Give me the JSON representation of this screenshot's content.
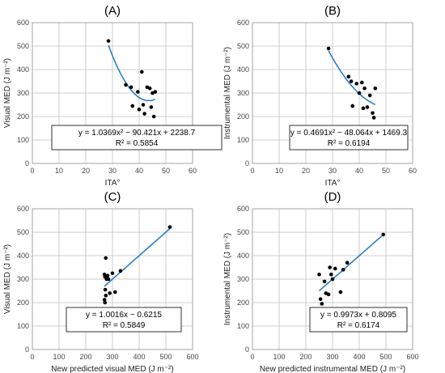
{
  "chart_data": [
    {
      "type": "scatter",
      "panel": "(A)",
      "xlabel": "ITA°",
      "ylabel": "Visual MED (J m⁻²)",
      "xlim": [
        0,
        60
      ],
      "ylim": [
        0,
        600
      ],
      "xticks": [
        0,
        10,
        20,
        30,
        40,
        50,
        60
      ],
      "yticks": [
        0,
        100,
        200,
        300,
        400,
        500,
        600
      ],
      "grid": true,
      "points": [
        {
          "x": 28.5,
          "y": 522
        },
        {
          "x": 35,
          "y": 335
        },
        {
          "x": 37,
          "y": 325
        },
        {
          "x": 37.5,
          "y": 245
        },
        {
          "x": 39.5,
          "y": 305
        },
        {
          "x": 40,
          "y": 230
        },
        {
          "x": 41,
          "y": 390
        },
        {
          "x": 41.5,
          "y": 250
        },
        {
          "x": 42,
          "y": 212
        },
        {
          "x": 43,
          "y": 325
        },
        {
          "x": 44,
          "y": 320
        },
        {
          "x": 44.5,
          "y": 240
        },
        {
          "x": 45,
          "y": 300
        },
        {
          "x": 45.5,
          "y": 200
        },
        {
          "x": 46,
          "y": 305
        }
      ],
      "fit": {
        "type": "poly2",
        "a": 1.0369,
        "b": -90.421,
        "c": 2238.7,
        "x_range": [
          28.5,
          46
        ]
      },
      "equation": "y = 1.0369x² − 90.421x + 2238.7",
      "r2": "R² = 0.5854"
    },
    {
      "type": "scatter",
      "panel": "(B)",
      "xlabel": "ITA°",
      "ylabel": "Instrumental MED (J m⁻²)",
      "xlim": [
        0,
        60
      ],
      "ylim": [
        0,
        600
      ],
      "xticks": [
        0,
        10,
        20,
        30,
        40,
        50,
        60
      ],
      "yticks": [
        0,
        100,
        200,
        300,
        400,
        500,
        600
      ],
      "grid": true,
      "points": [
        {
          "x": 28.5,
          "y": 490
        },
        {
          "x": 36,
          "y": 370
        },
        {
          "x": 37,
          "y": 350
        },
        {
          "x": 37.5,
          "y": 245
        },
        {
          "x": 39,
          "y": 340
        },
        {
          "x": 40,
          "y": 300
        },
        {
          "x": 41,
          "y": 345
        },
        {
          "x": 41.5,
          "y": 235
        },
        {
          "x": 42,
          "y": 320
        },
        {
          "x": 43,
          "y": 240
        },
        {
          "x": 44,
          "y": 290
        },
        {
          "x": 45,
          "y": 215
        },
        {
          "x": 45.5,
          "y": 195
        },
        {
          "x": 46,
          "y": 320
        }
      ],
      "fit": {
        "type": "poly2",
        "a": 0.4691,
        "b": -48.064,
        "c": 1469.3,
        "x_range": [
          28.5,
          46
        ]
      },
      "equation": "y = 0.4691x² − 48.064x + 1469.3",
      "r2": "R² = 0.6194"
    },
    {
      "type": "scatter",
      "panel": "(C)",
      "xlabel": "New predicted visual MED (J m⁻²)",
      "ylabel": "Visual MED (J m⁻²)",
      "xlim": [
        0,
        600
      ],
      "ylim": [
        0,
        600
      ],
      "xticks": [
        0,
        100,
        200,
        300,
        400,
        500,
        600
      ],
      "yticks": [
        0,
        100,
        200,
        300,
        400,
        500,
        600
      ],
      "grid": true,
      "points": [
        {
          "x": 515,
          "y": 522
        },
        {
          "x": 270,
          "y": 320
        },
        {
          "x": 272,
          "y": 310
        },
        {
          "x": 275,
          "y": 390
        },
        {
          "x": 278,
          "y": 300
        },
        {
          "x": 273,
          "y": 255
        },
        {
          "x": 275,
          "y": 230
        },
        {
          "x": 270,
          "y": 212
        },
        {
          "x": 272,
          "y": 200
        },
        {
          "x": 285,
          "y": 300
        },
        {
          "x": 290,
          "y": 240
        },
        {
          "x": 300,
          "y": 325
        },
        {
          "x": 310,
          "y": 245
        },
        {
          "x": 330,
          "y": 335
        },
        {
          "x": 282,
          "y": 315
        }
      ],
      "fit": {
        "type": "linear",
        "m": 1.0016,
        "b": -0.6215,
        "x_range": [
          270,
          515
        ]
      },
      "equation": "y = 1.0016x − 0.6215",
      "r2": "R² = 0.5849"
    },
    {
      "type": "scatter",
      "panel": "(D)",
      "xlabel": "New predicted instrumental MED (J m⁻²)",
      "ylabel": "Instrumental MED (J m⁻²)",
      "xlim": [
        0,
        600
      ],
      "ylim": [
        0,
        600
      ],
      "xticks": [
        0,
        100,
        200,
        300,
        400,
        500,
        600
      ],
      "yticks": [
        0,
        100,
        200,
        300,
        400,
        500,
        600
      ],
      "grid": true,
      "points": [
        {
          "x": 490,
          "y": 490
        },
        {
          "x": 250,
          "y": 320
        },
        {
          "x": 255,
          "y": 215
        },
        {
          "x": 260,
          "y": 195
        },
        {
          "x": 270,
          "y": 290
        },
        {
          "x": 275,
          "y": 240
        },
        {
          "x": 285,
          "y": 235
        },
        {
          "x": 290,
          "y": 350
        },
        {
          "x": 295,
          "y": 320
        },
        {
          "x": 300,
          "y": 300
        },
        {
          "x": 310,
          "y": 345
        },
        {
          "x": 330,
          "y": 245
        },
        {
          "x": 340,
          "y": 340
        },
        {
          "x": 355,
          "y": 370
        }
      ],
      "fit": {
        "type": "linear",
        "m": 0.9973,
        "b": 0.8095,
        "x_range": [
          250,
          490
        ]
      },
      "equation": "y = 0.9973x + 0.8095",
      "r2": "R² = 0.6174"
    }
  ]
}
